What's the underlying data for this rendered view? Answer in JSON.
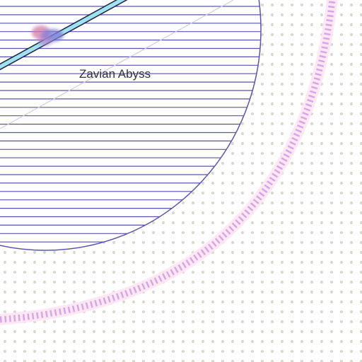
{
  "map": {
    "regions": [
      {
        "name": "Zavian Abyss",
        "fill_pattern": "horizontal-hatch",
        "color": "#5a55a8"
      }
    ],
    "route": {
      "label": "",
      "casing_color": "#222244",
      "fill_color": "#9fe3f0"
    },
    "boundary_ring": {
      "color": "#d6a6e6",
      "glow_color": "#ffe4f2"
    },
    "background": {
      "dot_color": "#d8d8d0",
      "paper_color": "#ffffff"
    },
    "marker": {
      "colors": [
        "#d27aa8",
        "#7f7fd8"
      ]
    },
    "guide_line_color": "#cfcbe4"
  }
}
